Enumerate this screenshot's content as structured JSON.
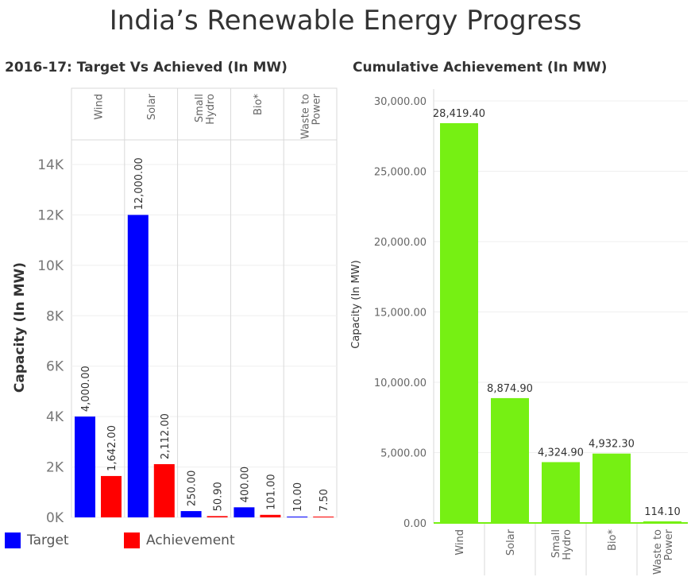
{
  "title": "India’s Renewable Energy Progress",
  "colors": {
    "target": "#0000ff",
    "achievement": "#ff0000",
    "cumulative": "#76f013"
  },
  "chart_data": [
    {
      "type": "bar",
      "title": "2016-17: Target Vs Achieved (In MW)",
      "xlabel": "",
      "ylabel": "Capacity (In MW)",
      "categories": [
        "Wind",
        "Solar",
        "Small Hydro",
        "Bio*",
        "Waste to Power"
      ],
      "series": [
        {
          "name": "Target",
          "values": [
            4000,
            12000,
            250,
            400,
            10
          ],
          "labels": [
            "4,000.00",
            "12,000.00",
            "250.00",
            "400.00",
            "10.00"
          ]
        },
        {
          "name": "Achievement",
          "values": [
            1642,
            2112,
            50.9,
            101,
            7.5
          ],
          "labels": [
            "1,642.00",
            "2,112.00",
            "50.90",
            "101.00",
            "7.50"
          ]
        }
      ],
      "yticks": [
        0,
        2000,
        4000,
        6000,
        8000,
        10000,
        12000,
        14000
      ],
      "ytick_labels": [
        "0K",
        "2K",
        "4K",
        "6K",
        "8K",
        "10K",
        "12K",
        "14K"
      ],
      "ylim": [
        0,
        15000
      ],
      "legend": [
        "Target",
        "Achievement"
      ]
    },
    {
      "type": "bar",
      "title": "Cumulative Achievement (In MW)",
      "xlabel": "",
      "ylabel": "Capacity (In MW)",
      "categories": [
        "Wind",
        "Solar",
        "Small Hydro",
        "Bio*",
        "Waste to Power"
      ],
      "values": [
        28419.4,
        8874.9,
        4324.9,
        4932.3,
        114.1
      ],
      "labels": [
        "28,419.40",
        "8,874.90",
        "4,324.90",
        "4,932.30",
        "114.10"
      ],
      "yticks": [
        0,
        5000,
        10000,
        15000,
        20000,
        25000,
        30000
      ],
      "ytick_labels": [
        "0.00",
        "5,000.00",
        "10,000.00",
        "15,000.00",
        "20,000.00",
        "25,000.00",
        "30,000.00"
      ],
      "ylim": [
        0,
        31000
      ]
    }
  ]
}
